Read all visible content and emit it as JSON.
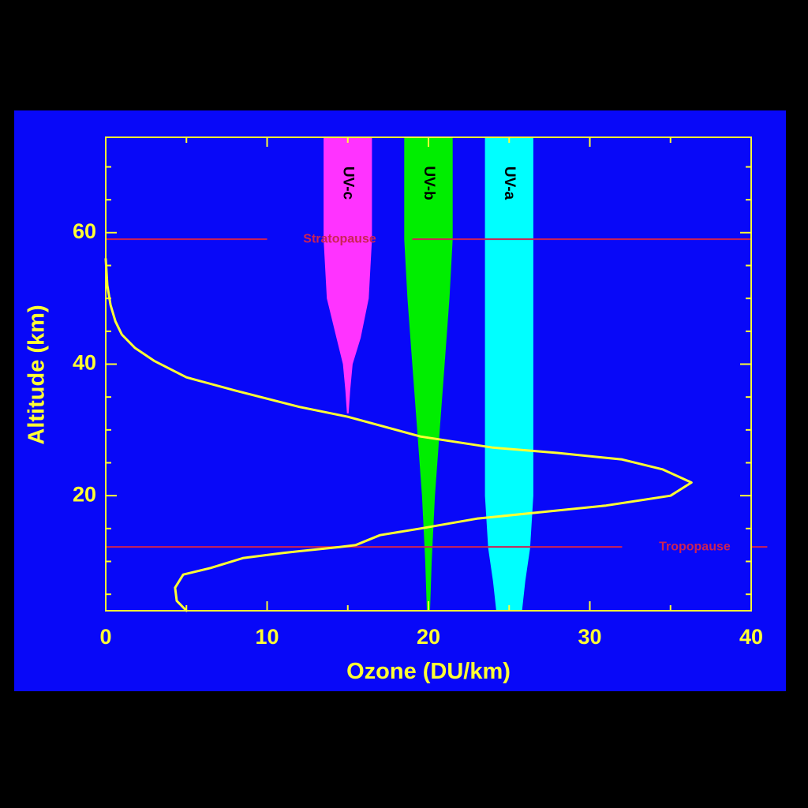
{
  "chart_data": {
    "type": "line",
    "xlabel": "Ozone (DU/km)",
    "ylabel": "Altitude (km)",
    "xlim": [
      0,
      40
    ],
    "ylim": [
      2.5,
      74.5
    ],
    "x_ticks": [
      0,
      10,
      20,
      30,
      40
    ],
    "y_ticks": [
      20,
      40,
      60
    ],
    "x_tick_labels": [
      "0",
      "10",
      "20",
      "30",
      "40"
    ],
    "y_tick_labels": [
      "20",
      "40",
      "60"
    ],
    "series": [
      {
        "color": "#ffff33",
        "points": [
          [
            5.0,
            2.5
          ],
          [
            4.4,
            4.0
          ],
          [
            4.3,
            6.0
          ],
          [
            4.8,
            8.0
          ],
          [
            6.5,
            9.0
          ],
          [
            8.5,
            10.5
          ],
          [
            11.0,
            11.3
          ],
          [
            14.5,
            12.2
          ],
          [
            15.5,
            12.5
          ],
          [
            17.0,
            14.0
          ],
          [
            19.5,
            15.0
          ],
          [
            23.0,
            16.5
          ],
          [
            27.0,
            17.5
          ],
          [
            31.0,
            18.5
          ],
          [
            35.0,
            20.0
          ],
          [
            36.3,
            22.0
          ],
          [
            34.5,
            24.0
          ],
          [
            32.0,
            25.5
          ],
          [
            28.0,
            26.5
          ],
          [
            24.0,
            27.3
          ],
          [
            19.5,
            29.0
          ],
          [
            15.0,
            32.0
          ],
          [
            12.0,
            33.5
          ],
          [
            8.0,
            36.0
          ],
          [
            5.0,
            38.0
          ],
          [
            3.0,
            40.5
          ],
          [
            1.8,
            42.5
          ],
          [
            1.0,
            44.5
          ],
          [
            0.6,
            46.5
          ],
          [
            0.3,
            49.0
          ],
          [
            0.1,
            52.0
          ],
          [
            0.0,
            56.0
          ]
        ]
      }
    ],
    "reference_lines": [
      {
        "y": 59.0,
        "label": "Stratopause",
        "color": "#cc2255",
        "label_x": 14.5
      },
      {
        "y": 12.2,
        "label": "Tropopause",
        "color": "#cc2255",
        "label_x": 36.5
      }
    ],
    "bands": [
      {
        "label": "UV-c",
        "color": "#ff33ff",
        "profile": [
          [
            74.5,
            13.5,
            16.5
          ],
          [
            59.0,
            13.5,
            16.5
          ],
          [
            50.0,
            13.7,
            16.3
          ],
          [
            44.0,
            14.3,
            15.8
          ],
          [
            40.0,
            14.7,
            15.3
          ],
          [
            36.0,
            14.85,
            15.15
          ],
          [
            32.5,
            14.95,
            15.05
          ]
        ]
      },
      {
        "label": "UV-b",
        "color": "#00ee00",
        "profile": [
          [
            74.5,
            18.5,
            21.5
          ],
          [
            59.0,
            18.5,
            21.5
          ],
          [
            50.0,
            18.7,
            21.3
          ],
          [
            40.0,
            19.0,
            21.0
          ],
          [
            30.0,
            19.3,
            20.7
          ],
          [
            20.0,
            19.6,
            20.4
          ],
          [
            10.0,
            19.8,
            20.2
          ],
          [
            2.5,
            19.9,
            20.1
          ]
        ]
      },
      {
        "label": "UV-a",
        "color": "#00ffff",
        "profile": [
          [
            74.5,
            23.5,
            26.5
          ],
          [
            20.0,
            23.5,
            26.5
          ],
          [
            12.0,
            23.7,
            26.3
          ],
          [
            7.0,
            24.0,
            26.0
          ],
          [
            2.5,
            24.2,
            25.8
          ]
        ]
      }
    ]
  },
  "colors": {
    "background": "#0808f8",
    "axis": "#ffff33",
    "reference": "#cc2255",
    "band_text": "#000000"
  }
}
